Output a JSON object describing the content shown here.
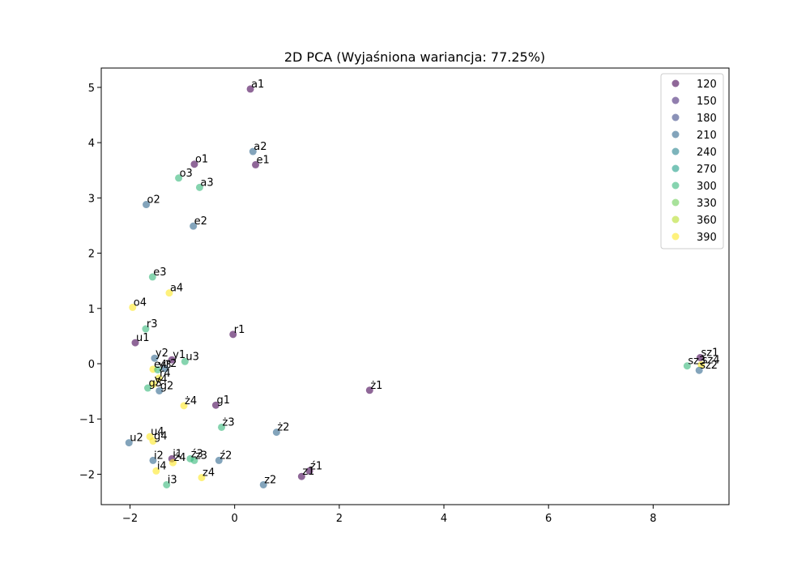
{
  "chart_data": {
    "type": "scatter",
    "title": "2D PCA (Wyjaśniona wariancja: 77.25%)",
    "xlabel": "",
    "ylabel": "",
    "xlim": [
      -2.55,
      9.45
    ],
    "ylim": [
      -2.55,
      5.35
    ],
    "xticks": [
      -2,
      0,
      2,
      4,
      6,
      8
    ],
    "yticks": [
      -2,
      -1,
      0,
      1,
      2,
      3,
      4,
      5
    ],
    "grid": false,
    "legend_position": "top-right",
    "point_opacity": 0.6,
    "legend": [
      {
        "label": "120",
        "color": "#440154"
      },
      {
        "label": "150",
        "color": "#482878"
      },
      {
        "label": "180",
        "color": "#3e4989"
      },
      {
        "label": "210",
        "color": "#31688e"
      },
      {
        "label": "240",
        "color": "#26828e"
      },
      {
        "label": "270",
        "color": "#1f9e89"
      },
      {
        "label": "300",
        "color": "#35b779"
      },
      {
        "label": "330",
        "color": "#6ece58"
      },
      {
        "label": "360",
        "color": "#b5de2b"
      },
      {
        "label": "390",
        "color": "#fde725"
      }
    ],
    "points": [
      {
        "label": "a1",
        "x": 0.3,
        "y": 4.97,
        "color": "#440154"
      },
      {
        "label": "a2",
        "x": 0.35,
        "y": 3.84,
        "color": "#31688e"
      },
      {
        "label": "e1",
        "x": 0.4,
        "y": 3.6,
        "color": "#440154"
      },
      {
        "label": "o1",
        "x": -0.77,
        "y": 3.61,
        "color": "#440154"
      },
      {
        "label": "o3",
        "x": -1.07,
        "y": 3.36,
        "color": "#35b779"
      },
      {
        "label": "a3",
        "x": -0.67,
        "y": 3.19,
        "color": "#35b779"
      },
      {
        "label": "o2",
        "x": -1.69,
        "y": 2.88,
        "color": "#31688e"
      },
      {
        "label": "e2",
        "x": -0.79,
        "y": 2.49,
        "color": "#31688e"
      },
      {
        "label": "e3",
        "x": -1.57,
        "y": 1.57,
        "color": "#35b779"
      },
      {
        "label": "a4",
        "x": -1.25,
        "y": 1.28,
        "color": "#fde725"
      },
      {
        "label": "o4",
        "x": -1.95,
        "y": 1.02,
        "color": "#fde725"
      },
      {
        "label": "r3",
        "x": -1.7,
        "y": 0.63,
        "color": "#35b779"
      },
      {
        "label": "r1",
        "x": -0.03,
        "y": 0.53,
        "color": "#440154"
      },
      {
        "label": "u1",
        "x": -1.9,
        "y": 0.38,
        "color": "#440154"
      },
      {
        "label": "y2",
        "x": -1.53,
        "y": 0.1,
        "color": "#31688e"
      },
      {
        "label": "y1",
        "x": -1.2,
        "y": 0.07,
        "color": "#440154"
      },
      {
        "label": "u3",
        "x": -0.95,
        "y": 0.04,
        "color": "#35b779"
      },
      {
        "label": "e4",
        "x": -1.56,
        "y": -0.1,
        "color": "#fde725"
      },
      {
        "label": "y3",
        "x": -1.47,
        "y": -0.11,
        "color": "#35b779"
      },
      {
        "label": "r2",
        "x": -1.33,
        "y": -0.09,
        "color": "#31688e"
      },
      {
        "label": "r4",
        "x": -1.45,
        "y": -0.26,
        "color": "#fde725"
      },
      {
        "label": "y4",
        "x": -1.55,
        "y": -0.37,
        "color": "#fde725"
      },
      {
        "label": "g3",
        "x": -1.66,
        "y": -0.44,
        "color": "#35b779"
      },
      {
        "label": "g2",
        "x": -1.44,
        "y": -0.49,
        "color": "#31688e"
      },
      {
        "label": "g1",
        "x": -0.36,
        "y": -0.75,
        "color": "#440154"
      },
      {
        "label": "ż4",
        "x": -0.97,
        "y": -0.76,
        "color": "#fde725"
      },
      {
        "label": "ż3",
        "x": -0.25,
        "y": -1.15,
        "color": "#35b779"
      },
      {
        "label": "ż2",
        "x": 0.8,
        "y": -1.24,
        "color": "#31688e"
      },
      {
        "label": "u4",
        "x": -1.62,
        "y": -1.32,
        "color": "#fde725"
      },
      {
        "label": "g4",
        "x": -1.56,
        "y": -1.4,
        "color": "#fde725"
      },
      {
        "label": "u2",
        "x": -2.02,
        "y": -1.43,
        "color": "#31688e"
      },
      {
        "label": "i2",
        "x": -1.56,
        "y": -1.75,
        "color": "#31688e"
      },
      {
        "label": "i1",
        "x": -1.2,
        "y": -1.72,
        "color": "#440154"
      },
      {
        "label": "ź4",
        "x": -1.18,
        "y": -1.79,
        "color": "#fde725"
      },
      {
        "label": "ź3",
        "x": -0.85,
        "y": -1.72,
        "color": "#35b779"
      },
      {
        "label": "z3",
        "x": -0.77,
        "y": -1.75,
        "color": "#35b779"
      },
      {
        "label": "ź2",
        "x": -0.3,
        "y": -1.75,
        "color": "#31688e"
      },
      {
        "label": "i4",
        "x": -1.5,
        "y": -1.94,
        "color": "#fde725"
      },
      {
        "label": "ź1",
        "x": 1.43,
        "y": -1.94,
        "color": "#440154"
      },
      {
        "label": "z1",
        "x": 1.28,
        "y": -2.04,
        "color": "#440154"
      },
      {
        "label": "z4",
        "x": -0.63,
        "y": -2.06,
        "color": "#fde725"
      },
      {
        "label": "i3",
        "x": -1.3,
        "y": -2.19,
        "color": "#35b779"
      },
      {
        "label": "z2",
        "x": 0.55,
        "y": -2.19,
        "color": "#31688e"
      },
      {
        "label": "ż1",
        "x": 2.58,
        "y": -0.48,
        "color": "#440154"
      },
      {
        "label": "sz1",
        "x": 8.9,
        "y": 0.11,
        "color": "#440154"
      },
      {
        "label": "sz3",
        "x": 8.65,
        "y": -0.04,
        "color": "#35b779"
      },
      {
        "label": "sz4",
        "x": 8.92,
        "y": -0.02,
        "color": "#fde725"
      },
      {
        "label": "sz2",
        "x": 8.88,
        "y": -0.12,
        "color": "#31688e"
      }
    ]
  }
}
